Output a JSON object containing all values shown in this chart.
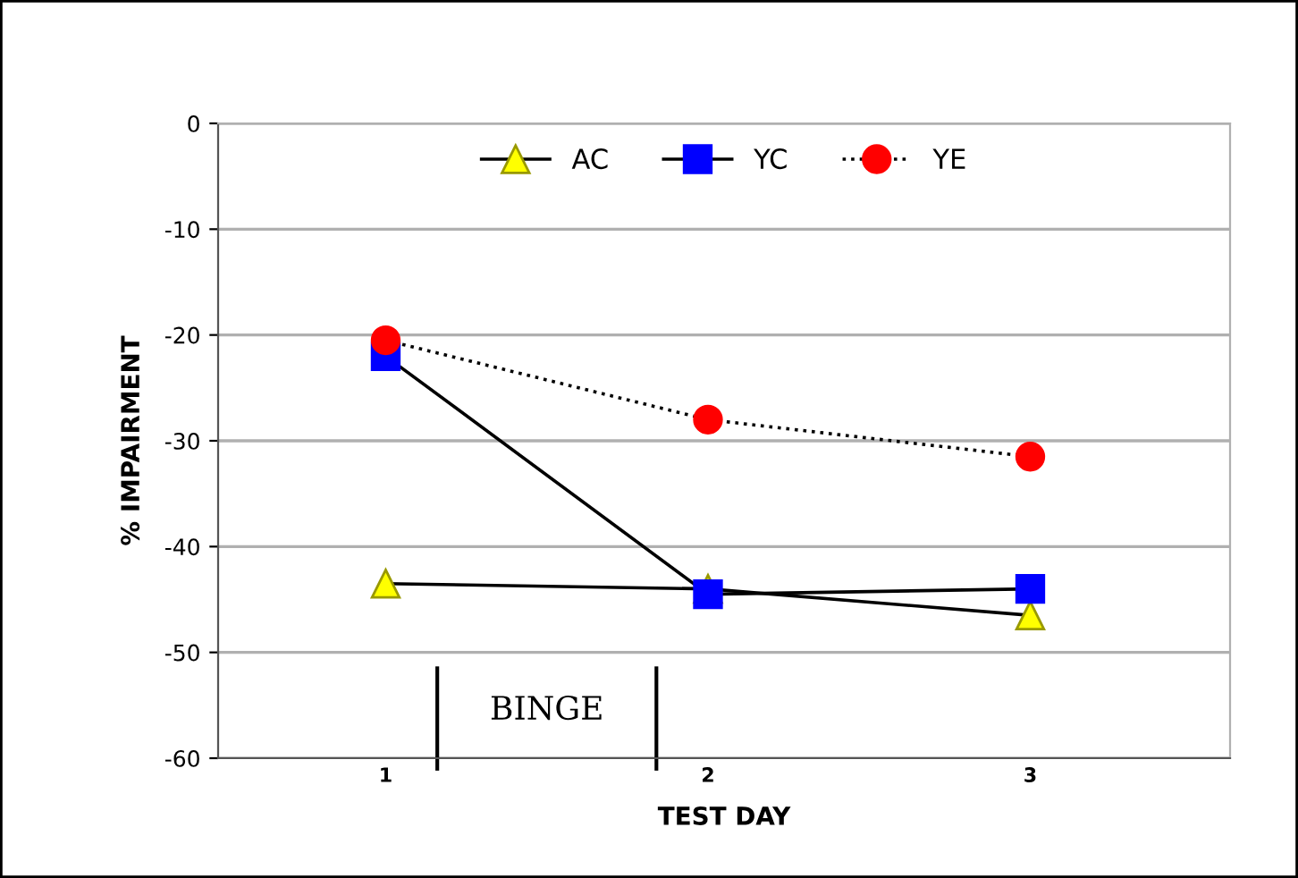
{
  "chart_data": {
    "type": "line",
    "xlabel": "TEST DAY",
    "ylabel": "% IMPAIRMENT",
    "categories": [
      "1",
      "2",
      "3"
    ],
    "series": [
      {
        "name": "AC",
        "color": "#ffff00",
        "values": [
          -43.5,
          -44,
          -46.5
        ],
        "marker": "triangle",
        "line_style": "solid"
      },
      {
        "name": "YC",
        "color": "#0000ff",
        "values": [
          -22,
          -44.5,
          -44
        ],
        "marker": "square",
        "line_style": "solid"
      },
      {
        "name": "YE",
        "color": "#ff0000",
        "values": [
          -20.5,
          -28,
          -31.5
        ],
        "marker": "circle",
        "line_style": "dotted"
      }
    ],
    "ylim": [
      -60,
      0
    ],
    "yticks": [
      -60,
      -50,
      -40,
      -30,
      -20,
      -10,
      0
    ],
    "grid": "y",
    "legend": "top",
    "annotations": [
      "BINGE"
    ]
  }
}
